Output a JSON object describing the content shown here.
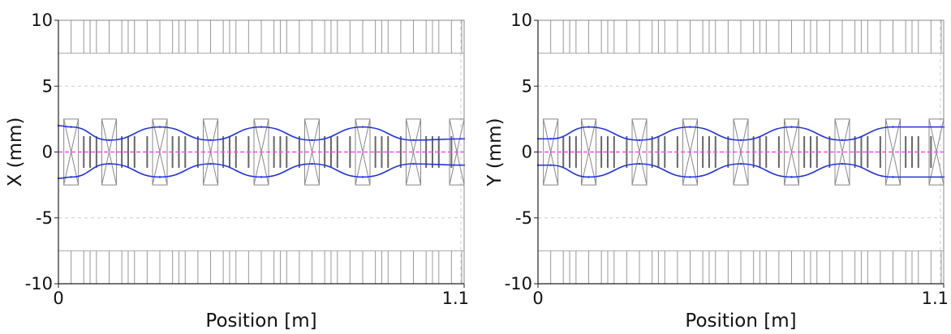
{
  "chart_data": [
    {
      "type": "line",
      "xlabel": "Position [m]",
      "ylabel": "X (mm)",
      "xlim": [
        0,
        1.1
      ],
      "ylim": [
        -10,
        10
      ],
      "x_ticks": [
        "0",
        "1.1"
      ],
      "y_ticks": [
        "10",
        "5",
        "0",
        "-5",
        "-10"
      ],
      "grid": true,
      "aperture_mm": 7.5,
      "colors": {
        "envelope": "#2233dd",
        "centroid": "#ff44ff",
        "element": "#777777"
      },
      "series": [
        {
          "x": [
            0,
            0.0344,
            0.1375,
            0.275,
            0.4125,
            0.55,
            0.6875,
            0.825,
            0.9625,
            1.1
          ],
          "values": [
            2.0,
            1.9,
            0.9,
            1.9,
            0.9,
            1.9,
            0.9,
            1.9,
            0.9,
            1.0
          ]
        },
        {
          "x": [
            0,
            0.0344,
            0.1375,
            0.275,
            0.4125,
            0.55,
            0.6875,
            0.825,
            0.9625,
            1.1
          ],
          "values": [
            -2.0,
            -1.9,
            -0.9,
            -1.9,
            -0.9,
            -1.9,
            -0.9,
            -1.9,
            -0.9,
            -1.0
          ]
        },
        {
          "x": [
            0,
            1.1
          ],
          "values": [
            0,
            0
          ]
        }
      ],
      "quadrupoles_x": [
        0.0344,
        0.1375,
        0.275,
        0.4125,
        0.55,
        0.6875,
        0.825,
        0.9625,
        1.1
      ],
      "rf_gaps_x": [
        0.0687,
        0.0859,
        0.1031,
        0.1719,
        0.1891,
        0.2063,
        0.2406,
        0.3094,
        0.3266,
        0.3438,
        0.3781,
        0.4469,
        0.4641,
        0.4813,
        0.5156,
        0.5844,
        0.6016,
        0.6188,
        0.6531,
        0.7219,
        0.7391,
        0.7563,
        0.7906,
        0.8594,
        0.8766,
        0.8938,
        0.9281,
        0.9969,
        1.0141,
        1.0313,
        1.0656
      ]
    },
    {
      "type": "line",
      "xlabel": "Position [m]",
      "ylabel": "Y (mm)",
      "xlim": [
        0,
        1.1
      ],
      "ylim": [
        -10,
        10
      ],
      "x_ticks": [
        "0",
        "1.1"
      ],
      "y_ticks": [
        "10",
        "5",
        "0",
        "-5",
        "-10"
      ],
      "grid": true,
      "aperture_mm": 7.5,
      "colors": {
        "envelope": "#2233dd",
        "centroid": "#ff44ff",
        "element": "#777777"
      },
      "series": [
        {
          "x": [
            0,
            0.0344,
            0.1375,
            0.275,
            0.4125,
            0.55,
            0.6875,
            0.825,
            0.9625,
            1.1
          ],
          "values": [
            1.0,
            1.0,
            1.9,
            0.9,
            1.9,
            0.9,
            1.9,
            0.9,
            1.9,
            1.9
          ]
        },
        {
          "x": [
            0,
            0.0344,
            0.1375,
            0.275,
            0.4125,
            0.55,
            0.6875,
            0.825,
            0.9625,
            1.1
          ],
          "values": [
            -1.0,
            -1.0,
            -1.9,
            -0.9,
            -1.9,
            -0.9,
            -1.9,
            -0.9,
            -1.9,
            -1.9
          ]
        },
        {
          "x": [
            0,
            1.1
          ],
          "values": [
            0,
            0
          ]
        }
      ],
      "quadrupoles_x": [
        0.0344,
        0.1375,
        0.275,
        0.4125,
        0.55,
        0.6875,
        0.825,
        0.9625,
        1.1
      ],
      "rf_gaps_x": [
        0.0687,
        0.0859,
        0.1031,
        0.1719,
        0.1891,
        0.2063,
        0.2406,
        0.3094,
        0.3266,
        0.3438,
        0.3781,
        0.4469,
        0.4641,
        0.4813,
        0.5156,
        0.5844,
        0.6016,
        0.6188,
        0.6531,
        0.7219,
        0.7391,
        0.7563,
        0.7906,
        0.8594,
        0.8766,
        0.8938,
        0.9281,
        0.9969,
        1.0141,
        1.0313,
        1.0656
      ]
    }
  ]
}
